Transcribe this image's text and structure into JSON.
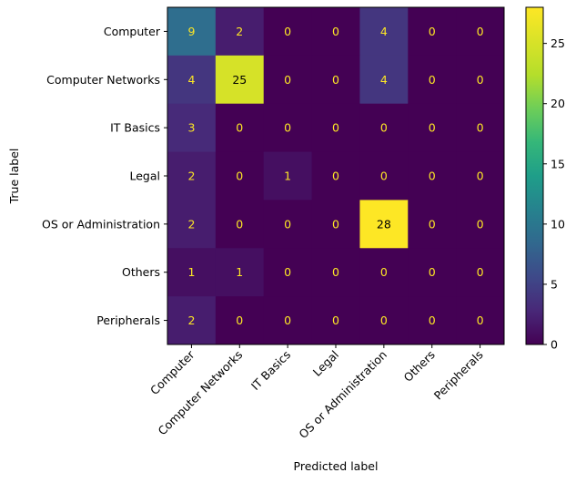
{
  "chart_data": {
    "type": "heatmap",
    "title": "",
    "xlabel": "Predicted label",
    "ylabel": "True label",
    "x_categories": [
      "Computer",
      "Computer Networks",
      "IT Basics",
      "Legal",
      "OS or Administration",
      "Others",
      "Peripherals"
    ],
    "y_categories": [
      "Computer",
      "Computer Networks",
      "IT Basics",
      "Legal",
      "OS or Administration",
      "Others",
      "Peripherals"
    ],
    "values": [
      [
        9,
        2,
        0,
        0,
        4,
        0,
        0
      ],
      [
        4,
        25,
        0,
        0,
        4,
        0,
        0
      ],
      [
        3,
        0,
        0,
        0,
        0,
        0,
        0
      ],
      [
        2,
        0,
        1,
        0,
        0,
        0,
        0
      ],
      [
        2,
        0,
        0,
        0,
        28,
        0,
        0
      ],
      [
        1,
        1,
        0,
        0,
        0,
        0,
        0
      ],
      [
        2,
        0,
        0,
        0,
        0,
        0,
        0
      ]
    ],
    "colormap": "viridis",
    "color_range": [
      0,
      28
    ],
    "colorbar_ticks": [
      0,
      5,
      10,
      15,
      20,
      25
    ],
    "text_color_low": "#fde725",
    "text_color_high": "#000000",
    "grid": false,
    "legend": "colorbar-right"
  }
}
